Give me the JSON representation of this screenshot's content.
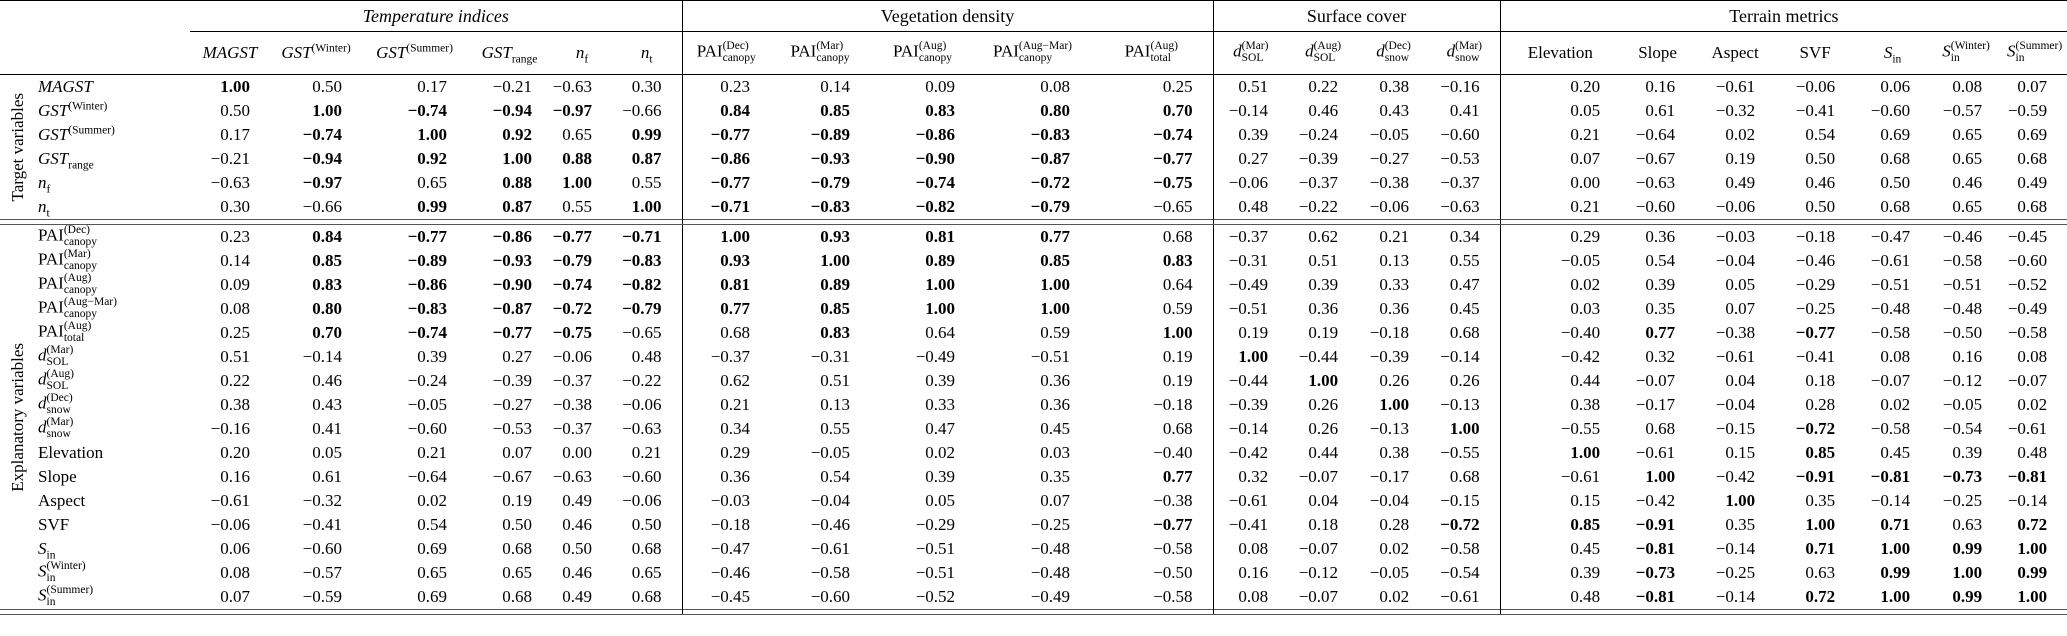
{
  "table": {
    "row_groups": [
      {
        "label": "Target variables"
      },
      {
        "label": "Explanatory variables"
      }
    ],
    "column_groups": [
      {
        "label": "Temperature indices",
        "italic": true,
        "span": 6
      },
      {
        "label": "Vegetation density",
        "italic": false,
        "span": 5
      },
      {
        "label": "Surface cover",
        "italic": false,
        "span": 4
      },
      {
        "label": "Terrain metrics",
        "italic": false,
        "span": 7
      }
    ],
    "bold_abs_threshold": 0.7,
    "columns": [
      {
        "base": "MAGST",
        "i": true
      },
      {
        "base": "GST",
        "i": true,
        "sup": "(Winter)"
      },
      {
        "base": "GST",
        "i": true,
        "sup": "(Summer)"
      },
      {
        "base": "GST",
        "i": true,
        "sub": "range"
      },
      {
        "base": "n",
        "i": true,
        "sub": "f"
      },
      {
        "base": "n",
        "i": true,
        "sub": "t"
      },
      {
        "base": "PAI",
        "sup": "(Dec)",
        "sub": "canopy"
      },
      {
        "base": "PAI",
        "sup": "(Mar)",
        "sub": "canopy"
      },
      {
        "base": "PAI",
        "sup": "(Aug)",
        "sub": "canopy"
      },
      {
        "base": "PAI",
        "sup": "(Aug−Mar)",
        "sub": "canopy"
      },
      {
        "base": "PAI",
        "sup": "(Aug)",
        "sub": "total"
      },
      {
        "base": "d",
        "i": true,
        "sup": "(Mar)",
        "sub": "SOL"
      },
      {
        "base": "d",
        "i": true,
        "sup": "(Aug)",
        "sub": "SOL"
      },
      {
        "base": "d",
        "i": true,
        "sup": "(Dec)",
        "sub": "snow"
      },
      {
        "base": "d",
        "i": true,
        "sup": "(Mar)",
        "sub": "snow"
      },
      {
        "base": "Elevation"
      },
      {
        "base": "Slope"
      },
      {
        "base": "Aspect"
      },
      {
        "base": "SVF"
      },
      {
        "base": "S",
        "i": true,
        "sub": "in"
      },
      {
        "base": "S",
        "i": true,
        "sup": "(Winter)",
        "sub": "in"
      },
      {
        "base": "S",
        "i": true,
        "sup": "(Summer)",
        "sub": "in"
      }
    ],
    "target_rows": [
      {
        "label": {
          "base": "MAGST",
          "i": true
        },
        "values": [
          "1.00",
          "0.50",
          "0.17",
          "−0.21",
          "−0.63",
          "0.30",
          "0.23",
          "0.14",
          "0.09",
          "0.08",
          "0.25",
          "0.51",
          "0.22",
          "0.38",
          "−0.16",
          "0.20",
          "0.16",
          "−0.61",
          "−0.06",
          "0.06",
          "0.08",
          "0.07"
        ]
      },
      {
        "label": {
          "base": "GST",
          "i": true,
          "sup": "(Winter)"
        },
        "values": [
          "0.50",
          "1.00",
          "−0.74",
          "−0.94",
          "−0.97",
          "−0.66",
          "0.84",
          "0.85",
          "0.83",
          "0.80",
          "0.70",
          "−0.14",
          "0.46",
          "0.43",
          "0.41",
          "0.05",
          "0.61",
          "−0.32",
          "−0.41",
          "−0.60",
          "−0.57",
          "−0.59"
        ]
      },
      {
        "label": {
          "base": "GST",
          "i": true,
          "sup": "(Summer)"
        },
        "values": [
          "0.17",
          "−0.74",
          "1.00",
          "0.92",
          "0.65",
          "0.99",
          "−0.77",
          "−0.89",
          "−0.86",
          "−0.83",
          "−0.74",
          "0.39",
          "−0.24",
          "−0.05",
          "−0.60",
          "0.21",
          "−0.64",
          "0.02",
          "0.54",
          "0.69",
          "0.65",
          "0.69"
        ]
      },
      {
        "label": {
          "base": "GST",
          "i": true,
          "sub": "range"
        },
        "values": [
          "−0.21",
          "−0.94",
          "0.92",
          "1.00",
          "0.88",
          "0.87",
          "−0.86",
          "−0.93",
          "−0.90",
          "−0.87",
          "−0.77",
          "0.27",
          "−0.39",
          "−0.27",
          "−0.53",
          "0.07",
          "−0.67",
          "0.19",
          "0.50",
          "0.68",
          "0.65",
          "0.68"
        ]
      },
      {
        "label": {
          "base": "n",
          "i": true,
          "sub": "f"
        },
        "values": [
          "−0.63",
          "−0.97",
          "0.65",
          "0.88",
          "1.00",
          "0.55",
          "−0.77",
          "−0.79",
          "−0.74",
          "−0.72",
          "−0.75",
          "−0.06",
          "−0.37",
          "−0.38",
          "−0.37",
          "0.00",
          "−0.63",
          "0.49",
          "0.46",
          "0.50",
          "0.46",
          "0.49"
        ]
      },
      {
        "label": {
          "base": "n",
          "i": true,
          "sub": "t"
        },
        "values": [
          "0.30",
          "−0.66",
          "0.99",
          "0.87",
          "0.55",
          "1.00",
          "−0.71",
          "−0.83",
          "−0.82",
          "−0.79",
          "−0.65",
          "0.48",
          "−0.22",
          "−0.06",
          "−0.63",
          "0.21",
          "−0.60",
          "−0.06",
          "0.50",
          "0.68",
          "0.65",
          "0.68"
        ]
      }
    ],
    "explanatory_rows": [
      {
        "label": {
          "base": "PAI",
          "sup": "(Dec)",
          "sub": "canopy"
        },
        "values": [
          "0.23",
          "0.84",
          "−0.77",
          "−0.86",
          "−0.77",
          "−0.71",
          "1.00",
          "0.93",
          "0.81",
          "0.77",
          "0.68",
          "−0.37",
          "0.62",
          "0.21",
          "0.34",
          "0.29",
          "0.36",
          "−0.03",
          "−0.18",
          "−0.47",
          "−0.46",
          "−0.45"
        ]
      },
      {
        "label": {
          "base": "PAI",
          "sup": "(Mar)",
          "sub": "canopy"
        },
        "values": [
          "0.14",
          "0.85",
          "−0.89",
          "−0.93",
          "−0.79",
          "−0.83",
          "0.93",
          "1.00",
          "0.89",
          "0.85",
          "0.83",
          "−0.31",
          "0.51",
          "0.13",
          "0.55",
          "−0.05",
          "0.54",
          "−0.04",
          "−0.46",
          "−0.61",
          "−0.58",
          "−0.60"
        ]
      },
      {
        "label": {
          "base": "PAI",
          "sup": "(Aug)",
          "sub": "canopy"
        },
        "values": [
          "0.09",
          "0.83",
          "−0.86",
          "−0.90",
          "−0.74",
          "−0.82",
          "0.81",
          "0.89",
          "1.00",
          "1.00",
          "0.64",
          "−0.49",
          "0.39",
          "0.33",
          "0.47",
          "0.02",
          "0.39",
          "0.05",
          "−0.29",
          "−0.51",
          "−0.51",
          "−0.52"
        ]
      },
      {
        "label": {
          "base": "PAI",
          "sup": "(Aug−Mar)",
          "sub": "canopy"
        },
        "values": [
          "0.08",
          "0.80",
          "−0.83",
          "−0.87",
          "−0.72",
          "−0.79",
          "0.77",
          "0.85",
          "1.00",
          "1.00",
          "0.59",
          "−0.51",
          "0.36",
          "0.36",
          "0.45",
          "0.03",
          "0.35",
          "0.07",
          "−0.25",
          "−0.48",
          "−0.48",
          "−0.49"
        ]
      },
      {
        "label": {
          "base": "PAI",
          "sup": "(Aug)",
          "sub": "total"
        },
        "values": [
          "0.25",
          "0.70",
          "−0.74",
          "−0.77",
          "−0.75",
          "−0.65",
          "0.68",
          "0.83",
          "0.64",
          "0.59",
          "1.00",
          "0.19",
          "0.19",
          "−0.18",
          "0.68",
          "−0.40",
          "0.77",
          "−0.38",
          "−0.77",
          "−0.58",
          "−0.50",
          "−0.58"
        ]
      },
      {
        "label": {
          "base": "d",
          "i": true,
          "sup": "(Mar)",
          "sub": "SOL"
        },
        "values": [
          "0.51",
          "−0.14",
          "0.39",
          "0.27",
          "−0.06",
          "0.48",
          "−0.37",
          "−0.31",
          "−0.49",
          "−0.51",
          "0.19",
          "1.00",
          "−0.44",
          "−0.39",
          "−0.14",
          "−0.42",
          "0.32",
          "−0.61",
          "−0.41",
          "0.08",
          "0.16",
          "0.08"
        ]
      },
      {
        "label": {
          "base": "d",
          "i": true,
          "sup": "(Aug)",
          "sub": "SOL"
        },
        "values": [
          "0.22",
          "0.46",
          "−0.24",
          "−0.39",
          "−0.37",
          "−0.22",
          "0.62",
          "0.51",
          "0.39",
          "0.36",
          "0.19",
          "−0.44",
          "1.00",
          "0.26",
          "0.26",
          "0.44",
          "−0.07",
          "0.04",
          "0.18",
          "−0.07",
          "−0.12",
          "−0.07"
        ]
      },
      {
        "label": {
          "base": "d",
          "i": true,
          "sup": "(Dec)",
          "sub": "snow"
        },
        "values": [
          "0.38",
          "0.43",
          "−0.05",
          "−0.27",
          "−0.38",
          "−0.06",
          "0.21",
          "0.13",
          "0.33",
          "0.36",
          "−0.18",
          "−0.39",
          "0.26",
          "1.00",
          "−0.13",
          "0.38",
          "−0.17",
          "−0.04",
          "0.28",
          "0.02",
          "−0.05",
          "0.02"
        ]
      },
      {
        "label": {
          "base": "d",
          "i": true,
          "sup": "(Mar)",
          "sub": "snow"
        },
        "values": [
          "−0.16",
          "0.41",
          "−0.60",
          "−0.53",
          "−0.37",
          "−0.63",
          "0.34",
          "0.55",
          "0.47",
          "0.45",
          "0.68",
          "−0.14",
          "0.26",
          "−0.13",
          "1.00",
          "−0.55",
          "0.68",
          "−0.15",
          "−0.72",
          "−0.58",
          "−0.54",
          "−0.61"
        ]
      },
      {
        "label": {
          "base": "Elevation"
        },
        "values": [
          "0.20",
          "0.05",
          "0.21",
          "0.07",
          "0.00",
          "0.21",
          "0.29",
          "−0.05",
          "0.02",
          "0.03",
          "−0.40",
          "−0.42",
          "0.44",
          "0.38",
          "−0.55",
          "1.00",
          "−0.61",
          "0.15",
          "0.85",
          "0.45",
          "0.39",
          "0.48"
        ]
      },
      {
        "label": {
          "base": "Slope"
        },
        "values": [
          "0.16",
          "0.61",
          "−0.64",
          "−0.67",
          "−0.63",
          "−0.60",
          "0.36",
          "0.54",
          "0.39",
          "0.35",
          "0.77",
          "0.32",
          "−0.07",
          "−0.17",
          "0.68",
          "−0.61",
          "1.00",
          "−0.42",
          "−0.91",
          "−0.81",
          "−0.73",
          "−0.81"
        ]
      },
      {
        "label": {
          "base": "Aspect"
        },
        "values": [
          "−0.61",
          "−0.32",
          "0.02",
          "0.19",
          "0.49",
          "−0.06",
          "−0.03",
          "−0.04",
          "0.05",
          "0.07",
          "−0.38",
          "−0.61",
          "0.04",
          "−0.04",
          "−0.15",
          "0.15",
          "−0.42",
          "1.00",
          "0.35",
          "−0.14",
          "−0.25",
          "−0.14"
        ]
      },
      {
        "label": {
          "base": "SVF"
        },
        "values": [
          "−0.06",
          "−0.41",
          "0.54",
          "0.50",
          "0.46",
          "0.50",
          "−0.18",
          "−0.46",
          "−0.29",
          "−0.25",
          "−0.77",
          "−0.41",
          "0.18",
          "0.28",
          "−0.72",
          "0.85",
          "−0.91",
          "0.35",
          "1.00",
          "0.71",
          "0.63",
          "0.72"
        ]
      },
      {
        "label": {
          "base": "S",
          "i": true,
          "sub": "in"
        },
        "values": [
          "0.06",
          "−0.60",
          "0.69",
          "0.68",
          "0.50",
          "0.68",
          "−0.47",
          "−0.61",
          "−0.51",
          "−0.48",
          "−0.58",
          "0.08",
          "−0.07",
          "0.02",
          "−0.58",
          "0.45",
          "−0.81",
          "−0.14",
          "0.71",
          "1.00",
          "0.99",
          "1.00"
        ]
      },
      {
        "label": {
          "base": "S",
          "i": true,
          "sup": "(Winter)",
          "sub": "in"
        },
        "values": [
          "0.08",
          "−0.57",
          "0.65",
          "0.65",
          "0.46",
          "0.65",
          "−0.46",
          "−0.58",
          "−0.51",
          "−0.48",
          "−0.50",
          "0.16",
          "−0.12",
          "−0.05",
          "−0.54",
          "0.39",
          "−0.73",
          "−0.25",
          "0.63",
          "0.99",
          "1.00",
          "0.99"
        ]
      },
      {
        "label": {
          "base": "S",
          "i": true,
          "sup": "(Summer)",
          "sub": "in"
        },
        "values": [
          "0.07",
          "−0.59",
          "0.69",
          "0.68",
          "0.49",
          "0.68",
          "−0.45",
          "−0.60",
          "−0.52",
          "−0.49",
          "−0.58",
          "0.08",
          "−0.07",
          "0.02",
          "−0.61",
          "0.48",
          "−0.81",
          "−0.14",
          "0.72",
          "1.00",
          "0.99",
          "1.00"
        ]
      }
    ]
  }
}
